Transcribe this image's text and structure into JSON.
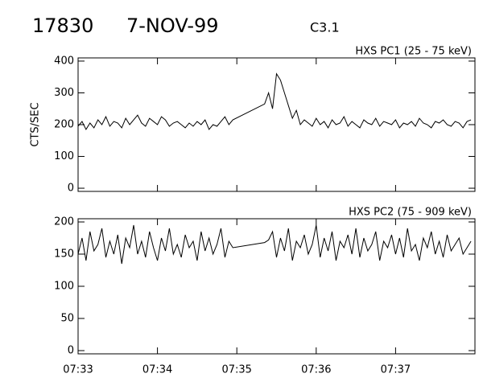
{
  "header": {
    "id": "17830",
    "date": "7-NOV-99",
    "class": "C3.1"
  },
  "chart_data": [
    {
      "type": "line",
      "title": "HXS PC1 (25 - 75 keV)",
      "y_label": "CTS/SEC",
      "color": "#000000",
      "xlim": [
        0,
        5
      ],
      "ylim": [
        -10,
        410
      ],
      "yticks": [
        0,
        100,
        200,
        300,
        400
      ],
      "x": [
        0,
        0.05,
        0.1,
        0.15,
        0.2,
        0.25,
        0.3,
        0.35,
        0.4,
        0.45,
        0.5,
        0.55,
        0.6,
        0.65,
        0.7,
        0.75,
        0.8,
        0.85,
        0.9,
        0.95,
        1,
        1.05,
        1.1,
        1.15,
        1.2,
        1.25,
        1.3,
        1.35,
        1.4,
        1.45,
        1.5,
        1.55,
        1.6,
        1.65,
        1.7,
        1.75,
        1.8,
        1.85,
        1.9,
        1.95,
        2.35,
        2.4,
        2.45,
        2.5,
        2.55,
        2.6,
        2.65,
        2.7,
        2.75,
        2.8,
        2.85,
        2.9,
        2.95,
        3,
        3.05,
        3.1,
        3.15,
        3.2,
        3.25,
        3.3,
        3.35,
        3.4,
        3.45,
        3.5,
        3.55,
        3.6,
        3.65,
        3.7,
        3.75,
        3.8,
        3.85,
        3.9,
        3.95,
        4,
        4.05,
        4.1,
        4.15,
        4.2,
        4.25,
        4.3,
        4.35,
        4.4,
        4.45,
        4.5,
        4.55,
        4.6,
        4.65,
        4.7,
        4.75,
        4.8,
        4.85,
        4.9,
        4.95
      ],
      "values": [
        195,
        210,
        185,
        205,
        190,
        215,
        200,
        225,
        195,
        210,
        205,
        190,
        220,
        200,
        215,
        230,
        205,
        195,
        220,
        210,
        200,
        225,
        215,
        195,
        205,
        210,
        200,
        190,
        205,
        195,
        210,
        200,
        215,
        185,
        200,
        195,
        210,
        225,
        200,
        215,
        265,
        300,
        250,
        360,
        340,
        300,
        260,
        220,
        245,
        200,
        215,
        205,
        195,
        220,
        200,
        210,
        190,
        215,
        200,
        205,
        225,
        195,
        210,
        200,
        190,
        215,
        205,
        200,
        220,
        195,
        210,
        205,
        200,
        215,
        190,
        205,
        200,
        210,
        195,
        220,
        205,
        200,
        190,
        210,
        205,
        215,
        200,
        195,
        210,
        205,
        190,
        210,
        215
      ]
    },
    {
      "type": "line",
      "title": "HXS PC2 (75 - 909 keV)",
      "color": "#000000",
      "xlim": [
        0,
        5
      ],
      "ylim": [
        -5,
        205
      ],
      "yticks": [
        0,
        50,
        100,
        150,
        200
      ],
      "xticks": [
        {
          "value": 0,
          "label": "07:33"
        },
        {
          "value": 1,
          "label": "07:34"
        },
        {
          "value": 2,
          "label": "07:35"
        },
        {
          "value": 3,
          "label": "07:36"
        },
        {
          "value": 4,
          "label": "07:37"
        }
      ],
      "x": [
        0,
        0.05,
        0.1,
        0.15,
        0.2,
        0.25,
        0.3,
        0.35,
        0.4,
        0.45,
        0.5,
        0.55,
        0.6,
        0.65,
        0.7,
        0.75,
        0.8,
        0.85,
        0.9,
        0.95,
        1,
        1.05,
        1.1,
        1.15,
        1.2,
        1.25,
        1.3,
        1.35,
        1.4,
        1.45,
        1.5,
        1.55,
        1.6,
        1.65,
        1.7,
        1.75,
        1.8,
        1.85,
        1.9,
        1.95,
        2.35,
        2.4,
        2.45,
        2.5,
        2.55,
        2.6,
        2.65,
        2.7,
        2.75,
        2.8,
        2.85,
        2.9,
        2.95,
        3,
        3.05,
        3.1,
        3.15,
        3.2,
        3.25,
        3.3,
        3.35,
        3.4,
        3.45,
        3.5,
        3.55,
        3.6,
        3.65,
        3.7,
        3.75,
        3.8,
        3.85,
        3.9,
        3.95,
        4,
        4.05,
        4.1,
        4.15,
        4.2,
        4.25,
        4.3,
        4.35,
        4.4,
        4.45,
        4.5,
        4.55,
        4.6,
        4.65,
        4.7,
        4.75,
        4.8,
        4.85,
        4.9,
        4.95
      ],
      "values": [
        150,
        175,
        140,
        185,
        155,
        165,
        190,
        145,
        170,
        150,
        180,
        135,
        175,
        160,
        195,
        150,
        170,
        145,
        185,
        160,
        140,
        175,
        155,
        190,
        150,
        165,
        145,
        180,
        160,
        170,
        140,
        185,
        155,
        175,
        150,
        165,
        190,
        145,
        170,
        160,
        168,
        172,
        185,
        145,
        175,
        155,
        190,
        140,
        170,
        160,
        180,
        150,
        165,
        195,
        145,
        175,
        155,
        185,
        140,
        170,
        160,
        180,
        150,
        190,
        145,
        175,
        155,
        165,
        185,
        140,
        170,
        160,
        180,
        150,
        175,
        145,
        190,
        155,
        165,
        140,
        175,
        160,
        185,
        150,
        170,
        145,
        180,
        155,
        165,
        175,
        150,
        160,
        170
      ]
    }
  ]
}
